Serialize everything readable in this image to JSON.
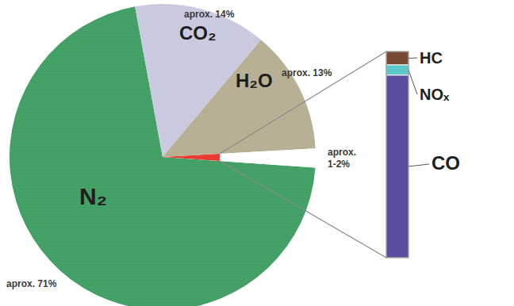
{
  "chart_data": [
    {
      "type": "pie",
      "categories": [
        "N₂",
        "CO₂",
        "H₂O",
        null
      ],
      "values": [
        71,
        14,
        13,
        2
      ],
      "value_labels": [
        "aprox. 71%",
        "aprox. 14%",
        "aprox. 13%",
        "aprox. 1-2%"
      ],
      "colors": [
        "#3f9e62",
        "#c9c8df",
        "#b5ae92",
        "#e8362c"
      ],
      "data_labels": true
    },
    {
      "type": "bar",
      "stacked": true,
      "categories": [
        "HC",
        "NOₓ",
        "CO"
      ],
      "values": [
        0.13,
        0.1,
        1.77
      ],
      "colors": [
        "#7a4b34",
        "#5ec9cc",
        "#5a4c9e"
      ],
      "ylim": [
        0,
        2
      ],
      "tick_labels": false
    }
  ]
}
